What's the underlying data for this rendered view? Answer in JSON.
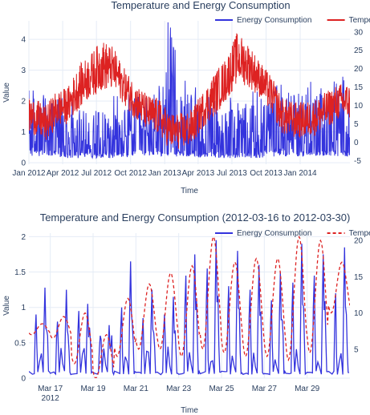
{
  "chart_data": [
    {
      "type": "line",
      "title": "Temperature and Energy Consumption",
      "xlabel": "Time",
      "ylabel": "Value",
      "y2label": "",
      "xlim": [
        "2012-01-01",
        "2014-05-15"
      ],
      "ylim": [
        -0.05,
        4.6
      ],
      "y2lim": [
        -6,
        33
      ],
      "x_ticks": [
        "Jan 2012",
        "Apr 2012",
        "Jul 2012",
        "Oct 2012",
        "Jan 2013",
        "Apr 2013",
        "Jul 2013",
        "Oct 2013",
        "Jan 2014"
      ],
      "x_tick_dates": [
        "2012-01-01",
        "2012-04-01",
        "2012-07-01",
        "2012-10-01",
        "2013-01-01",
        "2013-04-01",
        "2013-07-01",
        "2013-10-01",
        "2014-01-01"
      ],
      "y_ticks": [
        "0",
        "1",
        "2",
        "3",
        "4"
      ],
      "y2_ticks": [
        "-5",
        "0",
        "5",
        "10",
        "15",
        "20",
        "25",
        "30"
      ],
      "legend_placement": "top-right",
      "grid": true,
      "series": [
        {
          "name": "Energy Consumption",
          "axis": "left",
          "color": "#3333dd",
          "style": "solid",
          "description_values": "hourly readings, mostly 0.1–2.5, occasional spikes up to 4.6",
          "x_monthly": [
            "2012-01-15",
            "2012-02-15",
            "2012-03-15",
            "2012-04-15",
            "2012-05-15",
            "2012-06-15",
            "2012-07-15",
            "2012-08-15",
            "2012-09-15",
            "2012-10-15",
            "2012-11-15",
            "2012-12-15",
            "2013-01-15",
            "2013-02-15",
            "2013-03-15",
            "2013-04-15",
            "2013-05-15",
            "2013-06-15",
            "2013-07-15",
            "2013-08-15",
            "2013-09-15",
            "2013-10-15",
            "2013-11-15",
            "2013-12-15",
            "2014-01-15",
            "2014-02-15",
            "2014-03-15",
            "2014-04-15"
          ],
          "peak_monthly": [
            2.6,
            2.4,
            2.3,
            2.2,
            2.1,
            2.0,
            2.0,
            2.2,
            2.2,
            2.3,
            2.3,
            2.5,
            4.6,
            2.8,
            2.6,
            2.4,
            2.2,
            2.1,
            2.2,
            2.4,
            2.3,
            2.5,
            2.7,
            2.6,
            2.9,
            2.7,
            2.8,
            2.9
          ],
          "base_monthly": [
            0.2,
            0.2,
            0.2,
            0.15,
            0.15,
            0.15,
            0.15,
            0.15,
            0.15,
            0.2,
            0.2,
            0.2,
            0.2,
            0.2,
            0.2,
            0.15,
            0.15,
            0.15,
            0.15,
            0.15,
            0.15,
            0.2,
            0.2,
            0.2,
            0.2,
            0.2,
            0.2,
            0.2
          ]
        },
        {
          "name": "Temperature",
          "axis": "right",
          "color": "#dd2222",
          "style": "solid",
          "x_monthly": [
            "2012-01-15",
            "2012-02-15",
            "2012-03-15",
            "2012-04-15",
            "2012-05-15",
            "2012-06-15",
            "2012-07-15",
            "2012-08-15",
            "2012-09-15",
            "2012-10-15",
            "2012-11-15",
            "2012-12-15",
            "2013-01-15",
            "2013-02-15",
            "2013-03-15",
            "2013-04-15",
            "2013-05-15",
            "2013-06-15",
            "2013-07-15",
            "2013-08-15",
            "2013-09-15",
            "2013-10-15",
            "2013-11-15",
            "2013-12-15",
            "2014-01-15",
            "2014-02-15",
            "2014-03-15",
            "2014-04-15"
          ],
          "mean_monthly": [
            7,
            5,
            9,
            10,
            15,
            18,
            21,
            20,
            15,
            11,
            8,
            7,
            3,
            3,
            4,
            9,
            13,
            17,
            23,
            21,
            17,
            13,
            7,
            6,
            6,
            7,
            9,
            11
          ],
          "spread_monthly": [
            5,
            5,
            5,
            5,
            6,
            6,
            7,
            6,
            5,
            5,
            5,
            5,
            5,
            5,
            5,
            5,
            6,
            6,
            7,
            6,
            5,
            5,
            5,
            5,
            5,
            5,
            5,
            5
          ]
        }
      ]
    },
    {
      "type": "line",
      "title": "Temperature and Energy Consumption (2012-03-16 to 2012-03-30)",
      "xlabel": "Time",
      "ylabel": "Value",
      "y2label": "",
      "xlim": [
        "2012-03-16",
        "2012-03-31"
      ],
      "ylim": [
        0,
        2.05
      ],
      "y2lim": [
        1,
        21
      ],
      "x_ticks": [
        "Mar 17",
        "Mar 19",
        "Mar 21",
        "Mar 23",
        "Mar 25",
        "Mar 27",
        "Mar 29"
      ],
      "x_tick_sub": "2012",
      "x_tick_dates": [
        "2012-03-17",
        "2012-03-19",
        "2012-03-21",
        "2012-03-23",
        "2012-03-25",
        "2012-03-27",
        "2012-03-29"
      ],
      "y_ticks": [
        "0",
        "0.5",
        "1",
        "1.5",
        "2"
      ],
      "y2_ticks": [
        "5",
        "10",
        "15",
        "20"
      ],
      "legend_placement": "top-right",
      "grid": true,
      "series": [
        {
          "name": "Energy Consumption",
          "axis": "left",
          "color": "#3333dd",
          "style": "solid",
          "x_days": [
            "2012-03-16",
            "2012-03-17",
            "2012-03-18",
            "2012-03-19",
            "2012-03-20",
            "2012-03-21",
            "2012-03-22",
            "2012-03-23",
            "2012-03-24",
            "2012-03-25",
            "2012-03-26",
            "2012-03-27",
            "2012-03-28",
            "2012-03-29",
            "2012-03-30"
          ],
          "daily_peak": [
            1.28,
            1.25,
            1.05,
            0.75,
            1.65,
            1.25,
            1.15,
            1.75,
            1.95,
            1.8,
            1.6,
            1.5,
            1.9,
            1.75,
            1.85
          ],
          "daily_second_peak": [
            0.9,
            0.8,
            0.95,
            0.6,
            1.0,
            0.85,
            0.9,
            1.45,
            1.55,
            1.3,
            1.25,
            1.1,
            1.35,
            1.45,
            1.2
          ],
          "base": 0.05
        },
        {
          "name": "Temperature",
          "axis": "right",
          "color": "#dd2222",
          "style": "dashed",
          "x_days": [
            "2012-03-16",
            "2012-03-17",
            "2012-03-18",
            "2012-03-19",
            "2012-03-20",
            "2012-03-21",
            "2012-03-22",
            "2012-03-23",
            "2012-03-24",
            "2012-03-25",
            "2012-03-26",
            "2012-03-27",
            "2012-03-28",
            "2012-03-29",
            "2012-03-30"
          ],
          "daily_max": [
            8.5,
            9.5,
            10,
            7,
            12,
            14,
            15.5,
            16.5,
            20.5,
            17,
            17.5,
            17.5,
            20.5,
            20,
            17
          ],
          "daily_min": [
            7,
            6.5,
            3,
            1,
            4,
            5,
            5,
            4,
            5,
            4.5,
            4,
            4,
            3.5,
            4.5,
            10
          ]
        }
      ]
    }
  ]
}
